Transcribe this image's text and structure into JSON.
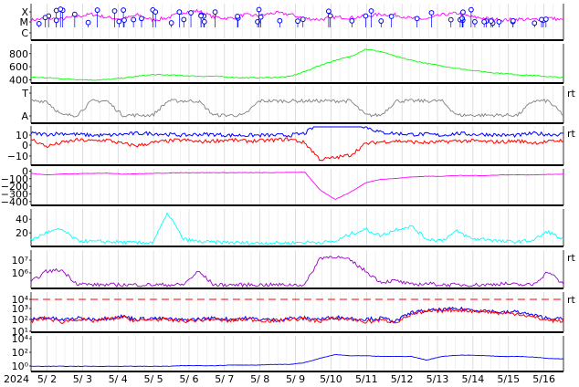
{
  "chart_data": {
    "type": "line",
    "x_axis": {
      "start_label": "2024",
      "ticks": [
        "5/ 2",
        "5/ 3",
        "5/ 4",
        "5/ 5",
        "5/ 6",
        "5/ 7",
        "5/ 8",
        "5/ 9",
        "5/10",
        "5/11",
        "5/12",
        "5/13",
        "5/14",
        "5/15",
        "5/16"
      ],
      "range_days": [
        1.55,
        16.55
      ],
      "grid": true
    },
    "panels": [
      {
        "id": "xray-class",
        "type": "line",
        "y_ticks": [
          "X",
          "M",
          "C"
        ],
        "series": [
          {
            "color": "#ff00ff",
            "values_rel": [
              0.55,
              0.6,
              0.58,
              0.66,
              0.72,
              0.63,
              0.58,
              0.7,
              0.55,
              0.62,
              0.78,
              0.82,
              0.64,
              0.6,
              0.7,
              0.68,
              0.76,
              0.72,
              0.6,
              0.57,
              0.64,
              0.62,
              0.66,
              0.72,
              0.7,
              0.6,
              0.58,
              0.7,
              0.75,
              0.64,
              0.6,
              0.55,
              0.58,
              0.56,
              0.62,
              0.55
            ]
          },
          {
            "color": "#0000ff",
            "markers": "flare",
            "count": 62
          }
        ]
      },
      {
        "id": "solar-wind-speed",
        "type": "line",
        "y_ticks": [
          "400",
          "600",
          "800"
        ],
        "ylim": [
          350,
          950
        ],
        "series": [
          {
            "color": "#00ff00",
            "values": [
              430,
              420,
              405,
              395,
              385,
              390,
              415,
              445,
              470,
              465,
              455,
              445,
              445,
              430,
              420,
              420,
              425,
              440,
              520,
              620,
              700,
              760,
              880,
              840,
              760,
              700,
              650,
              610,
              570,
              540,
              510,
              490,
              470,
              455,
              440,
              420
            ]
          }
        ]
      },
      {
        "id": "imf-sector",
        "type": "line",
        "y_ticks": [
          "T",
          "A"
        ],
        "right_label": "rt",
        "series": [
          {
            "color": "#808080",
            "values_rel": [
              0.6,
              0.6,
              0.2,
              0.2,
              0.6,
              0.6,
              0.2,
              0.2,
              0.2,
              0.6,
              0.6,
              0.6,
              0.2,
              0.2,
              0.2,
              0.6,
              0.6,
              0.6,
              0.6,
              0.6,
              0.6,
              0.6,
              0.2,
              0.2,
              0.6,
              0.6,
              0.6,
              0.6,
              0.2,
              0.2,
              0.2,
              0.2,
              0.2,
              0.6,
              0.6,
              0.2
            ]
          }
        ]
      },
      {
        "id": "bz-bt",
        "type": "line",
        "y_ticks": [
          "10",
          "0",
          "−10"
        ],
        "ylim": [
          -25,
          15
        ],
        "right_label": "rt",
        "series": [
          {
            "color": "#0000ff",
            "values": [
              8,
              7,
              8,
              7,
              6,
              6,
              7,
              8,
              8,
              7,
              6,
              7,
              7,
              6,
              6,
              6,
              6,
              6,
              8,
              20,
              22,
              20,
              15,
              9,
              8,
              7,
              7,
              6,
              8,
              7,
              7,
              6,
              6,
              8,
              7,
              7
            ]
          },
          {
            "color": "#ff0000",
            "values": [
              2,
              -6,
              -2,
              1,
              0,
              1,
              -3,
              -5,
              -2,
              0,
              1,
              -1,
              0,
              1,
              0,
              0,
              1,
              2,
              -2,
              -20,
              -18,
              -15,
              -3,
              -1,
              0,
              -1,
              -2,
              -1,
              0,
              0,
              -1,
              -1,
              0,
              -2,
              -1,
              1
            ]
          }
        ]
      },
      {
        "id": "dst",
        "type": "line",
        "y_ticks": [
          "0",
          "−100",
          "−200",
          "−300",
          "−400"
        ],
        "ylim": [
          -450,
          30
        ],
        "series": [
          {
            "color": "#ff00ff",
            "values": [
              -20,
              -40,
              -30,
              -25,
              -20,
              -15,
              -30,
              -25,
              -20,
              -15,
              -10,
              -10,
              -10,
              -10,
              -10,
              -10,
              -10,
              -5,
              -5,
              -250,
              -380,
              -280,
              -150,
              -100,
              -90,
              -70,
              -60,
              -60,
              -50,
              -50,
              -50,
              -40,
              -40,
              -40,
              -35,
              -30
            ]
          }
        ]
      },
      {
        "id": "proton-low",
        "type": "line",
        "y_ticks": [
          "40",
          "20"
        ],
        "ylim": [
          0,
          55
        ],
        "series": [
          {
            "color": "#00ffff",
            "values": [
              8,
              20,
              25,
              8,
              6,
              6,
              5,
              4,
              5,
              50,
              10,
              6,
              5,
              5,
              4,
              4,
              4,
              4,
              5,
              5,
              6,
              18,
              25,
              15,
              25,
              30,
              10,
              8,
              22,
              10,
              10,
              6,
              6,
              8,
              22,
              8
            ]
          }
        ]
      },
      {
        "id": "electron-flux",
        "type": "line",
        "y_ticks": [
          "10⁷",
          "10⁶"
        ],
        "log": true,
        "right_label": "rt",
        "series": [
          {
            "color": "#9900cc",
            "values_log": [
              5.2,
              6.0,
              6.1,
              5.1,
              5.0,
              5.0,
              5.0,
              5.0,
              5.0,
              5.0,
              5.0,
              6.0,
              5.0,
              5.0,
              5.0,
              5.0,
              5.0,
              5.0,
              5.0,
              7.0,
              7.1,
              6.8,
              6.0,
              5.2,
              5.3,
              5.0,
              5.1,
              5.0,
              5.0,
              5.0,
              5.0,
              5.1,
              5.0,
              5.0,
              6.0,
              5.0
            ]
          }
        ]
      },
      {
        "id": "proton-flux",
        "type": "line",
        "y_ticks": [
          "10⁴",
          "10³",
          "10²",
          "10¹"
        ],
        "log": true,
        "right_label": "rt",
        "threshold": {
          "value_log": 4,
          "color": "#ff0000",
          "dashed": true
        },
        "series": [
          {
            "color": "#0000ff",
            "values_log": [
              1.8,
              2.0,
              1.7,
              1.9,
              1.8,
              1.9,
              2.1,
              1.8,
              1.9,
              1.8,
              1.7,
              1.8,
              1.9,
              1.8,
              1.9,
              1.8,
              1.7,
              1.9,
              1.9,
              1.8,
              2.0,
              1.9,
              1.8,
              1.9,
              1.6,
              2.5,
              2.7,
              2.8,
              2.9,
              2.8,
              2.7,
              2.5,
              2.6,
              2.2,
              1.9,
              1.8
            ]
          },
          {
            "color": "#ff0000",
            "values_log": [
              1.6,
              1.9,
              1.5,
              1.8,
              1.6,
              1.8,
              2.0,
              1.6,
              1.8,
              1.7,
              1.6,
              1.7,
              1.8,
              1.6,
              1.8,
              1.7,
              1.6,
              1.8,
              1.8,
              1.6,
              1.9,
              1.8,
              1.5,
              1.7,
              1.5,
              2.3,
              2.6,
              2.7,
              2.8,
              2.7,
              2.6,
              2.4,
              2.4,
              2.0,
              1.7,
              1.6
            ]
          }
        ]
      },
      {
        "id": "neutron-flux",
        "type": "line",
        "y_ticks": [
          "10⁴",
          "10²",
          "10⁰"
        ],
        "log": true,
        "series": [
          {
            "color": "#0000ff",
            "values_log": [
              -0.3,
              -0.3,
              -0.3,
              -0.3,
              -0.3,
              -0.3,
              -0.3,
              -0.3,
              -0.3,
              -0.3,
              -0.2,
              -0.2,
              -0.2,
              -0.1,
              -0.1,
              -0.1,
              0.0,
              0.0,
              0.3,
              1.0,
              1.6,
              1.4,
              1.4,
              1.3,
              1.3,
              1.3,
              0.7,
              1.3,
              1.5,
              1.5,
              1.4,
              1.3,
              1.3,
              1.2,
              1.0,
              0.9
            ]
          }
        ]
      }
    ]
  }
}
